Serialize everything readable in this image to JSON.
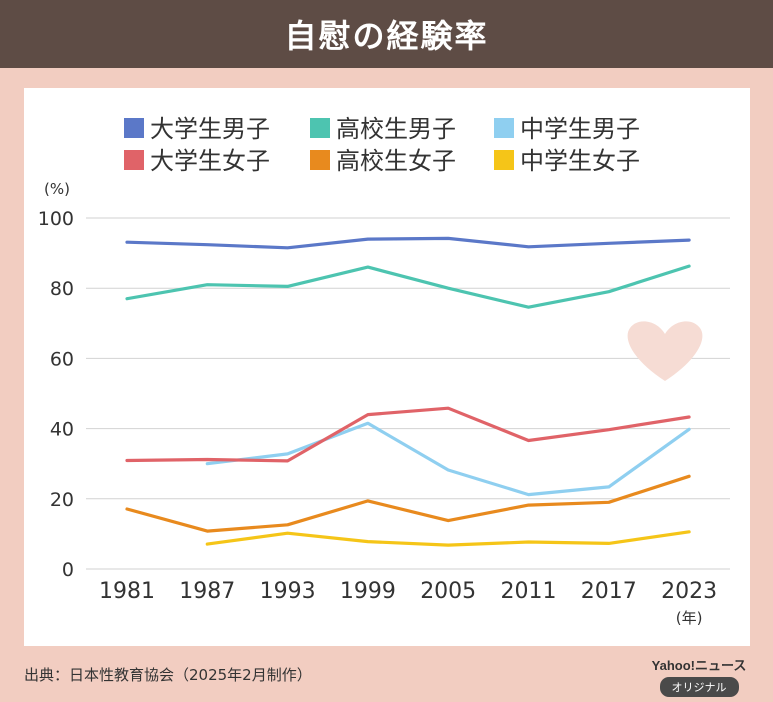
{
  "header": {
    "title": "自慰の経験率"
  },
  "chart_data": {
    "type": "line",
    "title": "自慰の経験率",
    "ylabel": "(%)",
    "xlabel": "(年)",
    "ylim": [
      0,
      100
    ],
    "yticks": [
      0,
      20,
      40,
      60,
      80,
      100
    ],
    "categories": [
      "1981",
      "1987",
      "1993",
      "1999",
      "2005",
      "2011",
      "2017",
      "2023"
    ],
    "grid": true,
    "legend_position": "top",
    "series": [
      {
        "name": "大学生男子",
        "color": "#5b78c8",
        "values": [
          93.1,
          92.4,
          91.5,
          94.0,
          94.2,
          91.8,
          92.8,
          93.7
        ]
      },
      {
        "name": "高校生男子",
        "color": "#4dc4b0",
        "values": [
          77.0,
          81.0,
          80.5,
          86.0,
          80.0,
          74.6,
          79.0,
          86.3
        ]
      },
      {
        "name": "中学生男子",
        "color": "#8fcff0",
        "values": [
          null,
          30.0,
          32.8,
          41.5,
          28.2,
          21.2,
          23.4,
          39.8
        ]
      },
      {
        "name": "大学生女子",
        "color": "#e06368",
        "values": [
          30.9,
          31.2,
          30.8,
          44.0,
          45.8,
          36.6,
          39.7,
          43.3
        ]
      },
      {
        "name": "高校生女子",
        "color": "#e88a1e",
        "values": [
          17.1,
          10.8,
          12.6,
          19.4,
          13.8,
          18.2,
          19.0,
          26.4
        ]
      },
      {
        "name": "中学生女子",
        "color": "#f5c518",
        "values": [
          null,
          7.1,
          10.2,
          7.8,
          6.8,
          7.7,
          7.3,
          10.6
        ]
      }
    ]
  },
  "footer": {
    "source": "出典：日本性教育協会（2025年2月制作）",
    "brand": "Yahoo!ニュース",
    "brand_tag": "オリジナル"
  },
  "colors": {
    "background": "#f2cdc1",
    "header": "#5e4c45",
    "heart": "#f6dcd4"
  }
}
